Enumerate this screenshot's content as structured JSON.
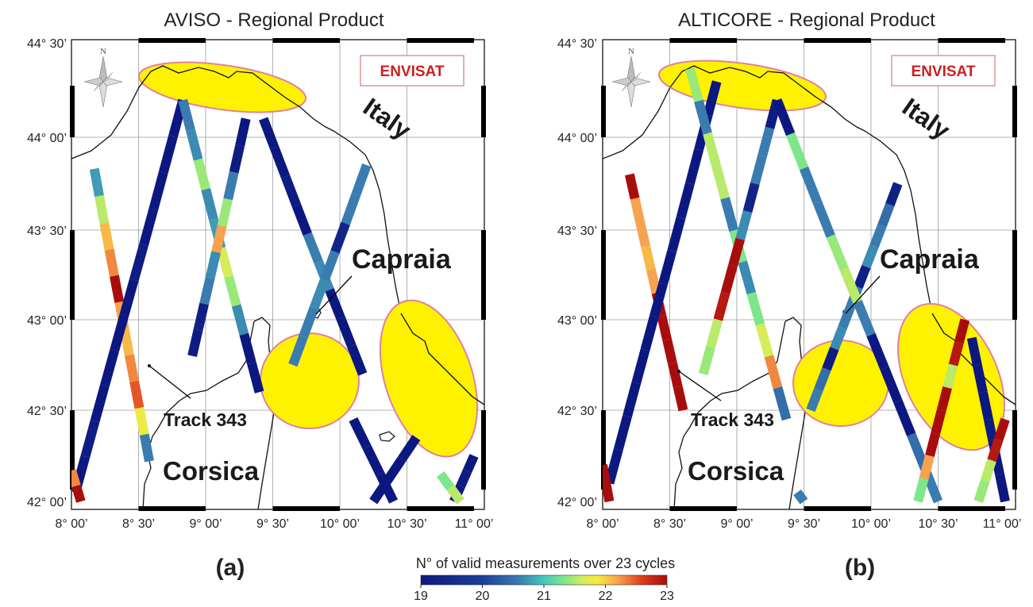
{
  "figure": {
    "colorbar": {
      "title": "N° of valid measurements over 23 cycles",
      "ticks": [
        "19",
        "20",
        "21",
        "22",
        "23"
      ],
      "range": [
        19,
        23
      ]
    },
    "panels": [
      {
        "id": "a",
        "label": "(a)",
        "title": "AVISO - Regional Product",
        "mission_label": "ENVISAT",
        "compass_label": "N",
        "places": {
          "country": "Italy",
          "island1": "Capraia",
          "island2": "Corsica",
          "track": "Track 343"
        },
        "lat_labels": [
          "44° 30’",
          "44° 00’",
          "43° 30’",
          "43° 00’",
          "42° 30’",
          "42° 00’"
        ],
        "lon_labels": [
          "8° 00’",
          "8° 30’",
          "9° 00’",
          "9° 30’",
          "10° 00’",
          "10° 30’",
          "11° 00’"
        ],
        "tracks": [
          {
            "start": [
              8.17,
              43.83
            ],
            "end": [
              8.58,
              42.22
            ],
            "values": [
              20.6,
              21.5,
              22.1,
              22.3,
              23.0,
              22.2,
              22.1,
              22.3,
              22.5,
              21.8,
              20.4
            ]
          },
          {
            "start": [
              8.03,
              42.05
            ],
            "end": [
              8.83,
              44.2
            ],
            "values": [
              19.0,
              19.1,
              19.0,
              19.0,
              19.0,
              19.0,
              19.1,
              19.0,
              19.0,
              19.0,
              19.0
            ]
          },
          {
            "start": [
              8.0,
              42.17
            ],
            "end": [
              8.07,
              42.0
            ],
            "values": [
              22.3,
              23.0
            ]
          },
          {
            "start": [
              8.83,
              44.2
            ],
            "end": [
              9.4,
              42.6
            ],
            "values": [
              20.4,
              20.5,
              21.4,
              20.5,
              20.6,
              21.6,
              21.4,
              20.5,
              19.0,
              19.0
            ]
          },
          {
            "start": [
              9.3,
              44.1
            ],
            "end": [
              8.9,
              42.8
            ],
            "values": [
              19.0,
              19.1,
              20.4,
              21.4,
              22.2,
              20.5,
              20.4,
              19.2,
              19.1
            ]
          },
          {
            "start": [
              9.43,
              44.1
            ],
            "end": [
              10.17,
              42.7
            ],
            "values": [
              19.0,
              19.0,
              19.1,
              19.0,
              20.4,
              20.5,
              19.0,
              19.0,
              19.0
            ]
          },
          {
            "start": [
              10.2,
              43.85
            ],
            "end": [
              9.65,
              42.75
            ],
            "values": [
              20.4,
              20.4,
              19.3,
              20.4,
              20.5,
              20.4,
              20.4
            ]
          },
          {
            "start": [
              10.1,
              42.45
            ],
            "end": [
              10.4,
              42.0
            ],
            "values": [
              19.0,
              19.0,
              19.0
            ]
          },
          {
            "start": [
              10.57,
              42.35
            ],
            "end": [
              10.25,
              42.0
            ],
            "values": [
              19.0,
              19.0,
              19.0
            ]
          },
          {
            "start": [
              11.0,
              42.25
            ],
            "end": [
              10.85,
              42.0
            ],
            "values": [
              19.0,
              19.1,
              19.0
            ]
          },
          {
            "start": [
              10.75,
              42.15
            ],
            "end": [
              10.9,
              42.0
            ],
            "values": [
              21.3,
              21.5
            ]
          }
        ]
      },
      {
        "id": "b",
        "label": "(b)",
        "title": "ALTICORE - Regional Product",
        "mission_label": "ENVISAT",
        "compass_label": "N",
        "places": {
          "country": "Italy",
          "island1": "Capraia",
          "island2": "Corsica",
          "track": "Track 343"
        },
        "lat_labels": [
          "44° 30’",
          "44° 00’",
          "43° 30’",
          "43° 00’",
          "42° 30’",
          "42° 00’"
        ],
        "lon_labels": [
          "8° 00’",
          "8° 30’",
          "9° 00’",
          "9° 30’",
          "10° 00’",
          "10° 30’",
          "11° 00’"
        ],
        "tracks": [
          {
            "start": [
              8.2,
              43.8
            ],
            "end": [
              8.6,
              42.5
            ],
            "values": [
              23.0,
              22.2,
              22.2,
              22.1,
              22.2,
              23.0,
              23.0,
              23.0,
              23.0,
              23.0
            ]
          },
          {
            "start": [
              8.05,
              42.1
            ],
            "end": [
              8.85,
              44.3
            ],
            "values": [
              19.0,
              19.0,
              19.0,
              19.0,
              19.0,
              19.0,
              19.0,
              19.0,
              19.0,
              19.0,
              19.0,
              19.0
            ]
          },
          {
            "start": [
              8.0,
              42.2
            ],
            "end": [
              8.05,
              42.0
            ],
            "values": [
              23.0,
              23.0
            ]
          },
          {
            "start": [
              8.65,
              44.37
            ],
            "end": [
              9.37,
              42.45
            ],
            "values": [
              21.4,
              20.4,
              21.5,
              21.5,
              20.4,
              21.3,
              20.5,
              21.3,
              21.6,
              22.3,
              20.3
            ]
          },
          {
            "start": [
              9.3,
              44.2
            ],
            "end": [
              8.75,
              42.7
            ],
            "values": [
              19.1,
              20.4,
              20.4,
              19.3,
              20.5,
              23.0,
              23.0,
              22.9,
              21.5,
              21.4
            ]
          },
          {
            "start": [
              10.2,
              43.75
            ],
            "end": [
              9.55,
              42.5
            ],
            "values": [
              19.2,
              20.3,
              20.4,
              20.5,
              19.2,
              20.4,
              20.4,
              20.5,
              19.1,
              20.3,
              20.4
            ]
          },
          {
            "start": [
              9.3,
              44.2
            ],
            "end": [
              10.5,
              42.0
            ],
            "values": [
              19.0,
              21.3,
              20.4,
              20.4,
              21.4,
              21.5,
              20.4,
              19.0,
              19.0,
              19.0,
              20.3,
              20.4
            ]
          },
          {
            "start": [
              10.7,
              43.0
            ],
            "end": [
              10.35,
              42.0
            ],
            "values": [
              23.0,
              22.9,
              21.5,
              23.0,
              23.0,
              23.0,
              22.2,
              21.3
            ]
          },
          {
            "start": [
              10.75,
              42.9
            ],
            "end": [
              11.0,
              42.0
            ],
            "values": [
              19.0,
              19.0,
              19.0,
              19.1,
              19.0,
              19.0
            ]
          },
          {
            "start": [
              11.0,
              42.45
            ],
            "end": [
              10.8,
              42.0
            ],
            "values": [
              23.0,
              22.9,
              21.5,
              21.4
            ]
          },
          {
            "start": [
              9.45,
              42.05
            ],
            "end": [
              9.5,
              42.0
            ],
            "values": [
              20.4
            ]
          }
        ]
      }
    ]
  }
}
